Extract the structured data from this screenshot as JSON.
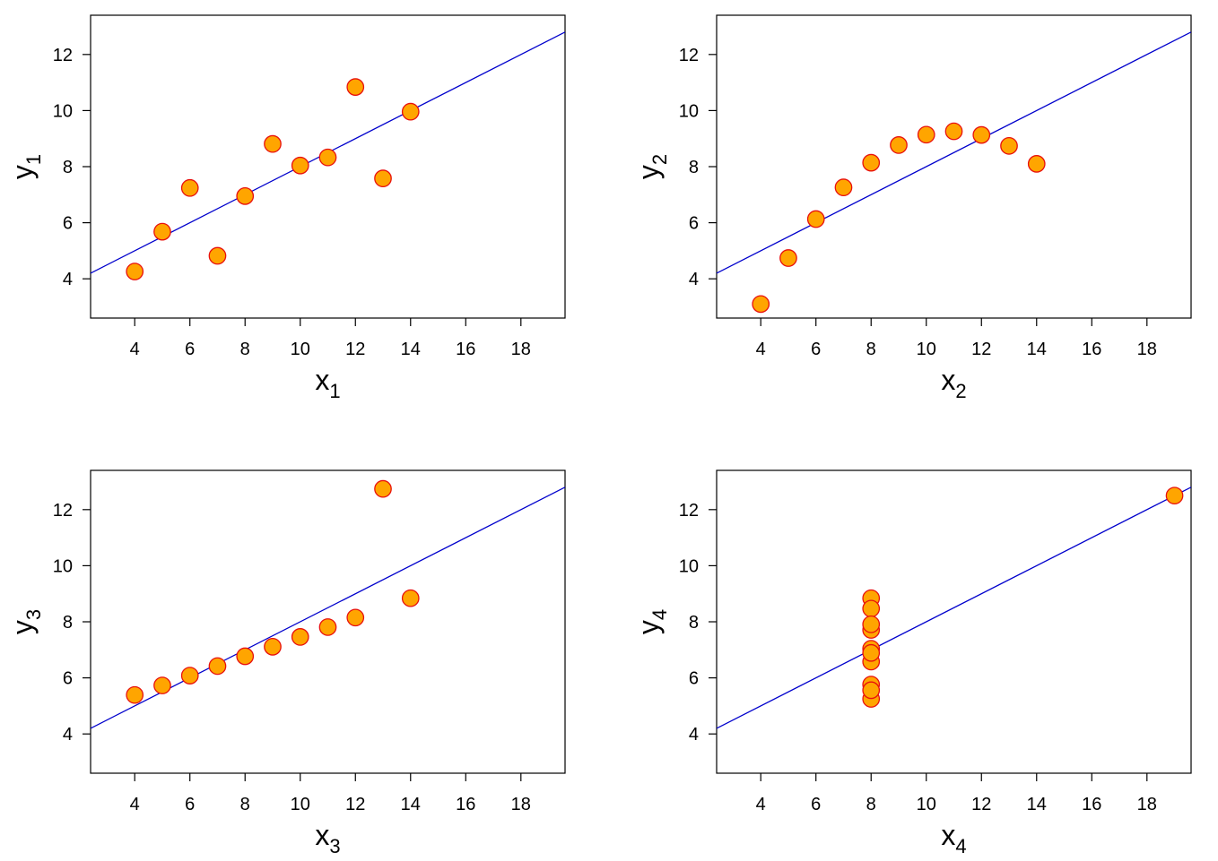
{
  "colors": {
    "point_fill": "#ffa500",
    "point_stroke": "#e8100c",
    "fit_line": "#0000cc",
    "frame": "#000000"
  },
  "chart_data": [
    {
      "type": "scatter",
      "xlabel": "x",
      "xlabel_sub": "1",
      "ylabel": "y",
      "ylabel_sub": "1",
      "xlim": [
        2.4,
        19.6
      ],
      "ylim": [
        2.6,
        13.4
      ],
      "xticks": [
        "4",
        "6",
        "8",
        "10",
        "12",
        "14",
        "16",
        "18"
      ],
      "yticks": [
        "4",
        "6",
        "8",
        "10",
        "12"
      ],
      "grid": false,
      "fit_line": {
        "intercept": 3.0,
        "slope": 0.5
      },
      "x": [
        10,
        8,
        13,
        9,
        11,
        14,
        6,
        4,
        12,
        7,
        5
      ],
      "y": [
        8.04,
        6.95,
        7.58,
        8.81,
        8.33,
        9.96,
        7.24,
        4.26,
        10.84,
        4.82,
        5.68
      ]
    },
    {
      "type": "scatter",
      "xlabel": "x",
      "xlabel_sub": "2",
      "ylabel": "y",
      "ylabel_sub": "2",
      "xlim": [
        2.4,
        19.6
      ],
      "ylim": [
        2.6,
        13.4
      ],
      "xticks": [
        "4",
        "6",
        "8",
        "10",
        "12",
        "14",
        "16",
        "18"
      ],
      "yticks": [
        "4",
        "6",
        "8",
        "10",
        "12"
      ],
      "grid": false,
      "fit_line": {
        "intercept": 3.0,
        "slope": 0.5
      },
      "x": [
        10,
        8,
        13,
        9,
        11,
        14,
        6,
        4,
        12,
        7,
        5
      ],
      "y": [
        9.14,
        8.14,
        8.74,
        8.77,
        9.26,
        8.1,
        6.13,
        3.1,
        9.13,
        7.26,
        4.74
      ]
    },
    {
      "type": "scatter",
      "xlabel": "x",
      "xlabel_sub": "3",
      "ylabel": "y",
      "ylabel_sub": "3",
      "xlim": [
        2.4,
        19.6
      ],
      "ylim": [
        2.6,
        13.4
      ],
      "xticks": [
        "4",
        "6",
        "8",
        "10",
        "12",
        "14",
        "16",
        "18"
      ],
      "yticks": [
        "4",
        "6",
        "8",
        "10",
        "12"
      ],
      "grid": false,
      "fit_line": {
        "intercept": 3.0,
        "slope": 0.5
      },
      "x": [
        10,
        8,
        13,
        9,
        11,
        14,
        6,
        4,
        12,
        7,
        5
      ],
      "y": [
        7.46,
        6.77,
        12.74,
        7.11,
        7.81,
        8.84,
        6.08,
        5.39,
        8.15,
        6.42,
        5.73
      ]
    },
    {
      "type": "scatter",
      "xlabel": "x",
      "xlabel_sub": "4",
      "ylabel": "y",
      "ylabel_sub": "4",
      "xlim": [
        2.4,
        19.6
      ],
      "ylim": [
        2.6,
        13.4
      ],
      "xticks": [
        "4",
        "6",
        "8",
        "10",
        "12",
        "14",
        "16",
        "18"
      ],
      "yticks": [
        "4",
        "6",
        "8",
        "10",
        "12"
      ],
      "grid": false,
      "fit_line": {
        "intercept": 3.0,
        "slope": 0.5
      },
      "x": [
        8,
        8,
        8,
        8,
        8,
        8,
        8,
        19,
        8,
        8,
        8
      ],
      "y": [
        6.58,
        5.76,
        7.71,
        8.84,
        8.47,
        7.04,
        5.25,
        12.5,
        5.56,
        7.91,
        6.89
      ]
    }
  ]
}
